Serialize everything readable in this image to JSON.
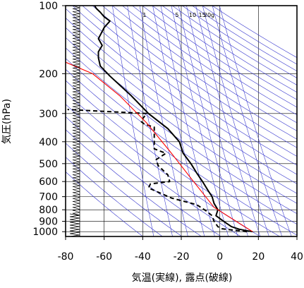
{
  "chart_data": {
    "type": "line",
    "xlabel": "気温(実線), 露点(破線)",
    "ylabel": "気圧(hPa)",
    "xlim": [
      -80,
      40
    ],
    "ylim": [
      1050,
      100
    ],
    "yscale": "log",
    "x_ticks": [
      -80,
      -60,
      -40,
      -20,
      0,
      20,
      40
    ],
    "x_tick_labels": [
      "-80",
      "-60",
      "-40",
      "-20",
      "0",
      "20",
      "40"
    ],
    "y_ticks": [
      100,
      200,
      300,
      400,
      500,
      600,
      700,
      800,
      900,
      1000
    ],
    "y_tick_labels": [
      "100",
      "200",
      "300",
      "400",
      "500",
      "600",
      "700",
      "800",
      "900",
      "1000"
    ],
    "grid": true,
    "mixing_ratio_labels": [
      {
        "text": "1",
        "w": 1
      },
      {
        "text": "5",
        "w": 5
      },
      {
        "text": "10",
        "w": 10
      },
      {
        "text": "15",
        "w": 15
      },
      {
        "text": "20g",
        "w": 20
      }
    ],
    "colors": {
      "temperature": "#000000",
      "dewpoint": "#000000",
      "parcel": "#ff0000",
      "dry_adiabat": "#3030cc",
      "mixing_ratio": "#3030cc",
      "grid": "#000000",
      "wind_barb": "#000000"
    },
    "series": [
      {
        "role": "temperature",
        "style": "solid",
        "points": [
          [
            17,
            1000
          ],
          [
            14,
            990
          ],
          [
            10,
            975
          ],
          [
            6,
            950
          ],
          [
            2,
            900
          ],
          [
            -2,
            850
          ],
          [
            -1,
            800
          ],
          [
            -3,
            750
          ],
          [
            -4,
            700
          ],
          [
            -6,
            660
          ],
          [
            -9,
            600
          ],
          [
            -12,
            550
          ],
          [
            -15,
            500
          ],
          [
            -19,
            450
          ],
          [
            -21,
            400
          ],
          [
            -27,
            350
          ],
          [
            -37,
            300
          ],
          [
            -46,
            250
          ],
          [
            -57,
            205
          ],
          [
            -62,
            185
          ],
          [
            -63,
            170
          ],
          [
            -63,
            160
          ],
          [
            -61,
            150
          ],
          [
            -63,
            140
          ],
          [
            -61,
            130
          ],
          [
            -60,
            125
          ],
          [
            -57,
            117
          ],
          [
            -60,
            112
          ],
          [
            -62,
            107
          ],
          [
            -64,
            103
          ],
          [
            -65,
            100
          ]
        ]
      },
      {
        "role": "dewpoint",
        "style": "dashed",
        "points": [
          [
            14,
            1000
          ],
          [
            10,
            990
          ],
          [
            5,
            980
          ],
          [
            1,
            970
          ],
          [
            -1,
            950
          ],
          [
            -3,
            900
          ],
          [
            -4,
            850
          ],
          [
            -7,
            810
          ],
          [
            -12,
            760
          ],
          [
            -25,
            710
          ],
          [
            -37,
            640
          ],
          [
            -36,
            615
          ],
          [
            -26,
            600
          ],
          [
            -27,
            560
          ],
          [
            -32,
            510
          ],
          [
            -33,
            480
          ],
          [
            -28,
            450
          ],
          [
            -34,
            430
          ],
          [
            -34,
            390
          ],
          [
            -34,
            345
          ],
          [
            -39,
            335
          ],
          [
            -41,
            325
          ],
          [
            -38,
            300
          ],
          [
            -79,
            288
          ]
        ]
      },
      {
        "role": "parcel",
        "style": "solid",
        "points": [
          [
            17,
            1000
          ],
          [
            -3,
            780
          ],
          [
            -15,
            580
          ],
          [
            -26,
            440
          ],
          [
            -38,
            330
          ],
          [
            -52,
            250
          ],
          [
            -66,
            200
          ],
          [
            -82,
            175
          ]
        ]
      }
    ]
  }
}
